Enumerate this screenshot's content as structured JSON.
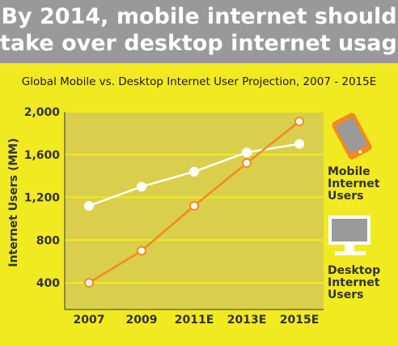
{
  "headline": {
    "line1": "By 2014, mobile internet should",
    "line2": "take over desktop internet usage"
  },
  "colors": {
    "background": "#f2ea20",
    "plot_area": "#d9cf4c",
    "header": "#999999",
    "mobile": "#f28a21",
    "desktop": "#ffffff"
  },
  "legend": {
    "mobile": {
      "icon": "mobile-phone-icon",
      "lines": [
        "Mobile",
        "Internet",
        "Users"
      ]
    },
    "desktop": {
      "icon": "desktop-monitor-icon",
      "lines": [
        "Desktop",
        "Internet",
        "Users"
      ]
    }
  },
  "chart_data": {
    "type": "line",
    "title": "Global Mobile vs. Desktop Internet User Projection, 2007 - 2015E",
    "xlabel": "",
    "ylabel": "Internet Users (MM)",
    "categories": [
      "2007",
      "2009",
      "2011E",
      "2013E",
      "2015E"
    ],
    "x_ticks": [
      "2007",
      "2009",
      "2011E",
      "2013E",
      "2015E"
    ],
    "y_ticks": [
      {
        "value": 400,
        "label": "400"
      },
      {
        "value": 800,
        "label": "800"
      },
      {
        "value": 1200,
        "label": "1,200"
      },
      {
        "value": 1600,
        "label": "1,600"
      },
      {
        "value": 2000,
        "label": "2,000"
      }
    ],
    "ylim": [
      150,
      2000
    ],
    "grid": true,
    "legend_position": "right",
    "series": [
      {
        "name": "Desktop Internet Users",
        "key": "desktop",
        "values": [
          1120,
          1300,
          1440,
          1620,
          1700
        ]
      },
      {
        "name": "Mobile Internet Users",
        "key": "mobile",
        "values": [
          400,
          700,
          1120,
          1520,
          1910
        ]
      }
    ]
  }
}
